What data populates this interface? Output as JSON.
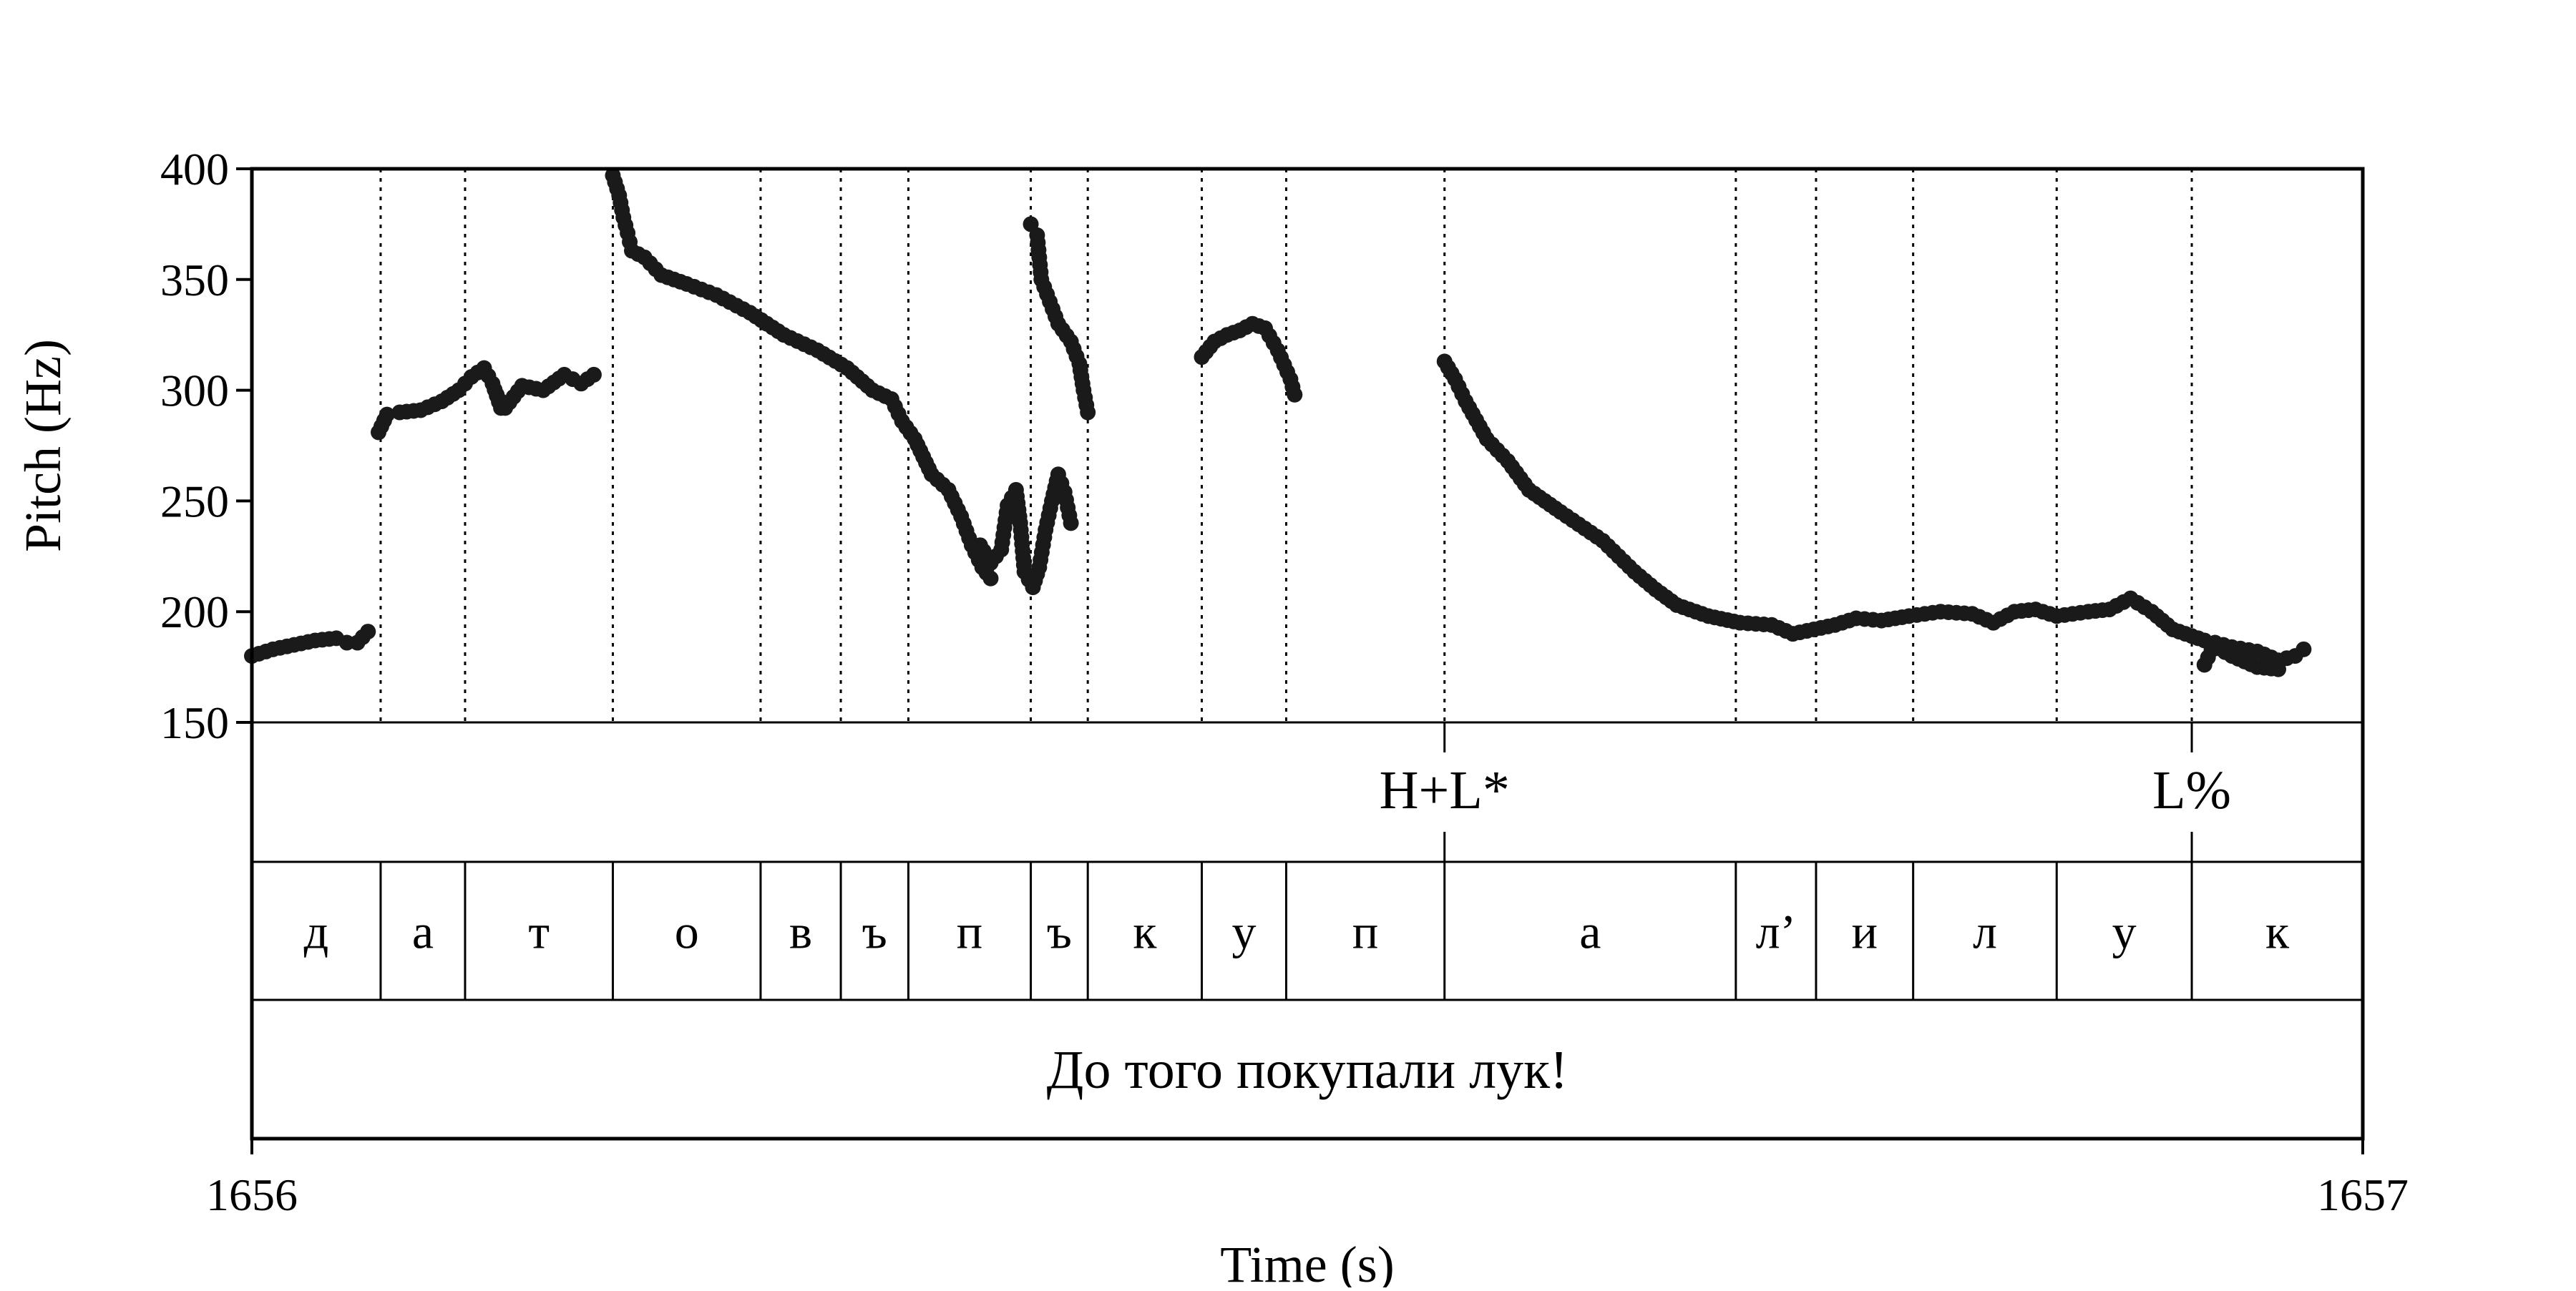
{
  "chart_data": {
    "type": "scatter",
    "ylabel": "Pitch (Hz)",
    "xlabel": "Time (s)",
    "ylim": [
      150,
      400
    ],
    "yticks": [
      "400",
      "350",
      "300",
      "250",
      "200",
      "150"
    ],
    "xlim": [
      1656,
      1657
    ],
    "xtick_labels": [
      "1656",
      "1657"
    ],
    "marker_color": "#1a1a1a",
    "tone_tier": [
      {
        "time": 1656.565,
        "label": "H+L*"
      },
      {
        "time": 1656.919,
        "label": "L%"
      }
    ],
    "segment_tier": {
      "boundaries": [
        1656.061,
        1656.101,
        1656.171,
        1656.241,
        1656.279,
        1656.311,
        1656.369,
        1656.396,
        1656.45,
        1656.49,
        1656.565,
        1656.703,
        1656.741,
        1656.787,
        1656.855,
        1656.919
      ],
      "labels": [
        "д",
        "а",
        "т",
        "о",
        "в",
        "ъ",
        "п",
        "ъ",
        "к",
        "у",
        "п",
        "а",
        "л’",
        "и",
        "л",
        "у",
        "к"
      ]
    },
    "sentence": "До того покупали лук!",
    "series": [
      {
        "segments": [
          [
            [
              1656.0,
              180
            ],
            [
              1656.01,
              183
            ],
            [
              1656.02,
              185
            ],
            [
              1656.03,
              187
            ],
            [
              1656.04,
              188
            ],
            [
              1656.045,
              186
            ],
            [
              1656.05,
              186
            ],
            [
              1656.055,
              191
            ]
          ],
          [
            [
              1656.06,
              281
            ],
            [
              1656.064,
              289
            ],
            [
              1656.07,
              290
            ],
            [
              1656.08,
              291
            ],
            [
              1656.09,
              295
            ],
            [
              1656.098,
              300
            ],
            [
              1656.104,
              306
            ],
            [
              1656.11,
              310
            ],
            [
              1656.114,
              303
            ],
            [
              1656.118,
              292
            ]
          ],
          [
            [
              1656.116,
              298
            ],
            [
              1656.12,
              292
            ],
            [
              1656.128,
              302
            ],
            [
              1656.138,
              300
            ],
            [
              1656.148,
              307
            ],
            [
              1656.156,
              303
            ],
            [
              1656.162,
              307
            ]
          ],
          [
            [
              1656.171,
              397
            ],
            [
              1656.174,
              388
            ],
            [
              1656.176,
              378
            ],
            [
              1656.178,
              371
            ],
            [
              1656.18,
              363
            ],
            [
              1656.186,
              360
            ],
            [
              1656.194,
              352
            ],
            [
              1656.206,
              348
            ],
            [
              1656.22,
              343
            ],
            [
              1656.236,
              335
            ],
            [
              1656.252,
              325
            ],
            [
              1656.268,
              318
            ],
            [
              1656.282,
              310
            ],
            [
              1656.294,
              300
            ],
            [
              1656.303,
              296
            ],
            [
              1656.308,
              286
            ],
            [
              1656.314,
              278
            ],
            [
              1656.318,
              270
            ],
            [
              1656.322,
              262
            ],
            [
              1656.33,
              255
            ],
            [
              1656.336,
              243
            ],
            [
              1656.341,
              230
            ],
            [
              1656.346,
              220
            ],
            [
              1656.35,
              215
            ]
          ],
          [
            [
              1656.345,
              230
            ],
            [
              1656.35,
              222
            ],
            [
              1656.355,
              228
            ],
            [
              1656.358,
              248
            ],
            [
              1656.362,
              255
            ],
            [
              1656.364,
              240
            ],
            [
              1656.366,
              218
            ],
            [
              1656.37,
              211
            ],
            [
              1656.373,
              220
            ],
            [
              1656.376,
              237
            ],
            [
              1656.379,
              250
            ],
            [
              1656.382,
              262
            ],
            [
              1656.385,
              254
            ],
            [
              1656.388,
              240
            ]
          ],
          [
            [
              1656.369,
              375
            ],
            [
              1656.372,
              370
            ],
            [
              1656.374,
              350
            ],
            [
              1656.378,
              340
            ],
            [
              1656.382,
              330
            ],
            [
              1656.388,
              322
            ],
            [
              1656.392,
              312
            ],
            [
              1656.394,
              300
            ],
            [
              1656.396,
              290
            ]
          ],
          [
            [
              1656.45,
              315
            ],
            [
              1656.456,
              322
            ],
            [
              1656.462,
              325
            ],
            [
              1656.468,
              327
            ],
            [
              1656.474,
              330
            ],
            [
              1656.48,
              328
            ],
            [
              1656.486,
              318
            ],
            [
              1656.492,
              305
            ],
            [
              1656.494,
              298
            ]
          ],
          [
            [
              1656.565,
              313
            ],
            [
              1656.57,
              305
            ],
            [
              1656.575,
              295
            ],
            [
              1656.585,
              278
            ],
            [
              1656.595,
              268
            ],
            [
              1656.605,
              255
            ],
            [
              1656.62,
              245
            ],
            [
              1656.64,
              232
            ],
            [
              1656.655,
              218
            ],
            [
              1656.665,
              210
            ],
            [
              1656.675,
              203
            ],
            [
              1656.69,
              198
            ],
            [
              1656.705,
              195
            ],
            [
              1656.72,
              194
            ],
            [
              1656.73,
              190
            ],
            [
              1656.74,
              192
            ],
            [
              1656.75,
              194
            ],
            [
              1656.76,
              197
            ],
            [
              1656.772,
              196
            ],
            [
              1656.785,
              198
            ],
            [
              1656.8,
              200
            ],
            [
              1656.815,
              199
            ],
            [
              1656.825,
              195
            ],
            [
              1656.835,
              200
            ],
            [
              1656.845,
              201
            ],
            [
              1656.855,
              198
            ],
            [
              1656.87,
              200
            ],
            [
              1656.88,
              201
            ],
            [
              1656.89,
              206
            ],
            [
              1656.9,
              200
            ],
            [
              1656.91,
              192
            ],
            [
              1656.925,
              187
            ],
            [
              1656.938,
              180
            ],
            [
              1656.95,
              175
            ],
            [
              1656.96,
              174
            ]
          ],
          [
            [
              1656.925,
              176
            ],
            [
              1656.93,
              186
            ],
            [
              1656.938,
              184
            ],
            [
              1656.95,
              182
            ],
            [
              1656.96,
              178
            ],
            [
              1656.968,
              180
            ],
            [
              1656.972,
              183
            ]
          ]
        ]
      }
    ]
  }
}
